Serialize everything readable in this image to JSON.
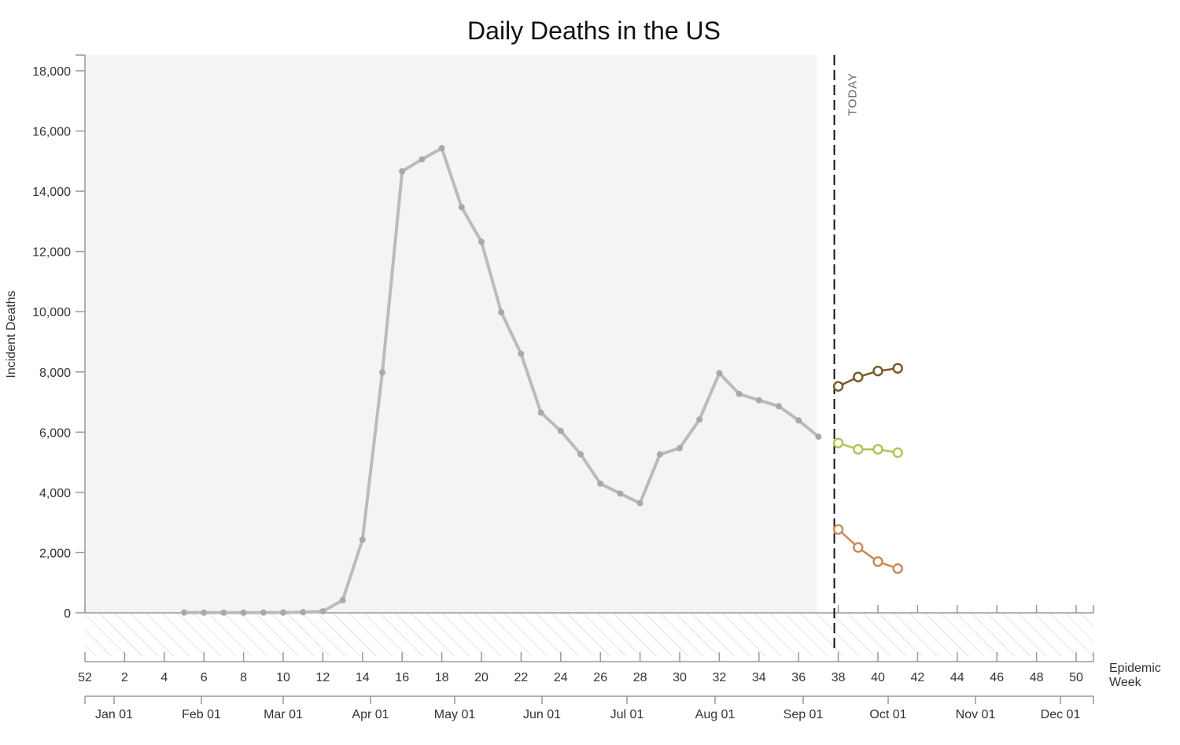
{
  "chart_data": {
    "type": "line",
    "title": "Daily Deaths in the US",
    "ylabel": "Incident Deaths",
    "xlabel": "Epidemic Week",
    "ylim": [
      -1500,
      18500
    ],
    "yticks": [
      0,
      2000,
      4000,
      6000,
      8000,
      10000,
      12000,
      14000,
      16000,
      18000
    ],
    "ytick_labels": [
      "0",
      "2,000",
      "4,000",
      "6,000",
      "8,000",
      "10,000",
      "12,000",
      "14,000",
      "16,000",
      "18,000"
    ],
    "week_ticks": [
      52,
      2,
      4,
      6,
      8,
      10,
      12,
      14,
      16,
      18,
      20,
      22,
      24,
      26,
      28,
      30,
      32,
      34,
      36,
      38,
      40,
      42,
      44,
      46,
      48,
      50
    ],
    "month_labels": [
      "Jan 01",
      "Feb 01",
      "Mar 01",
      "Apr 01",
      "May 01",
      "Jun 01",
      "Jul 01",
      "Aug 01",
      "Sep 01",
      "Oct 01",
      "Nov 01",
      "Dec 01"
    ],
    "today_label": "TODAY",
    "today_week": 37.8,
    "grid": false,
    "series": [
      {
        "role": "observed",
        "color": "#bbbbbb",
        "x": [
          5,
          6,
          7,
          8,
          9,
          10,
          11,
          12,
          13,
          14,
          15,
          16,
          17,
          18,
          19,
          20,
          21,
          22,
          23,
          24,
          25,
          26,
          27,
          28,
          29,
          30,
          31,
          32,
          33,
          34,
          35,
          36,
          37
        ],
        "y": [
          10,
          5,
          5,
          5,
          10,
          10,
          20,
          50,
          420,
          2430,
          7980,
          14660,
          15060,
          15430,
          13470,
          12320,
          9980,
          8600,
          6650,
          6040,
          5270,
          4290,
          3960,
          3640,
          5260,
          5470,
          6420,
          7960,
          7270,
          7060,
          6860,
          6390,
          5850
        ]
      },
      {
        "role": "forecast",
        "color": "#7a5a2c",
        "x": [
          38,
          39,
          40,
          41
        ],
        "y": [
          7520,
          7830,
          8030,
          8120
        ]
      },
      {
        "role": "forecast",
        "color": "#b4c257",
        "x": [
          38,
          39,
          40,
          41
        ],
        "y": [
          5640,
          5430,
          5430,
          5320
        ]
      },
      {
        "role": "forecast",
        "color": "#c98a56",
        "x": [
          38,
          39,
          40,
          41
        ],
        "y": [
          2770,
          2170,
          1700,
          1470
        ]
      }
    ]
  }
}
